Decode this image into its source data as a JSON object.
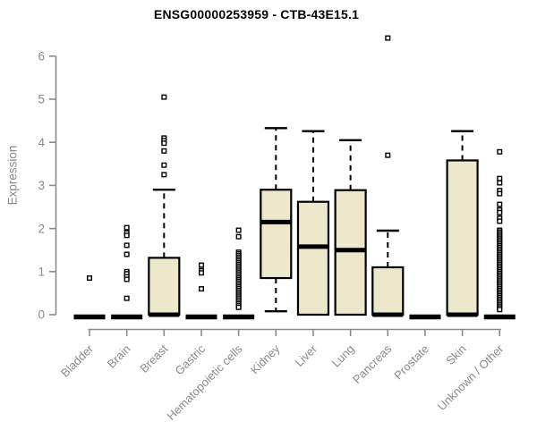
{
  "chart_data": {
    "type": "boxplot",
    "title": "ENSG00000253959 - CTB-43E15.1",
    "ylabel": "Expression",
    "xlabel": "",
    "ylim": [
      0,
      6.5
    ],
    "yticks": [
      0,
      1,
      2,
      3,
      4,
      5,
      6
    ],
    "grid": false,
    "legend": "none",
    "colors": {
      "box_fill": "#EDE7CC",
      "box_stroke": "#000000",
      "axis": "#8a8a8a",
      "tick_label": "#8a8a8a",
      "title": "#000000",
      "outlier_fill": "#ffffff"
    },
    "categories": [
      "Bladder",
      "Brain",
      "Breast",
      "Gastric",
      "Hematopoietic cells",
      "Kidney",
      "Liver",
      "Lung",
      "Pancreas",
      "Prostate",
      "Skin",
      "Unknown / Other"
    ],
    "series": [
      {
        "category": "Bladder",
        "whisker_low": 0,
        "q1": 0,
        "median": 0,
        "q3": 0,
        "whisker_high": 0,
        "outliers": [
          0.85
        ]
      },
      {
        "category": "Brain",
        "whisker_low": 0,
        "q1": 0,
        "median": 0,
        "q3": 0,
        "whisker_high": 0,
        "outliers": [
          2.02,
          1.9,
          1.84,
          1.61,
          1.4,
          1.0,
          0.95,
          0.88,
          0.82,
          0.38
        ]
      },
      {
        "category": "Breast",
        "whisker_low": 0,
        "q1": 0,
        "median": 0,
        "q3": 1.32,
        "whisker_high": 2.9,
        "outliers": [
          5.05,
          4.1,
          4.04,
          3.98,
          3.8,
          3.47,
          3.25
        ]
      },
      {
        "category": "Gastric",
        "whisker_low": 0,
        "q1": 0,
        "median": 0,
        "q3": 0,
        "whisker_high": 0,
        "outliers": [
          1.15,
          1.02,
          0.97,
          0.6
        ]
      },
      {
        "category": "Hematopoietic cells",
        "whisker_low": 0,
        "q1": 0,
        "median": 0,
        "q3": 0,
        "whisker_high": 0,
        "outliers": [
          1.96,
          1.81,
          1.45,
          1.41,
          1.37,
          1.33,
          1.29,
          1.25,
          1.21,
          1.17,
          1.13,
          1.09,
          1.05,
          1.01,
          0.97,
          0.93,
          0.89,
          0.85,
          0.81,
          0.77,
          0.73,
          0.69,
          0.65,
          0.61,
          0.57,
          0.53,
          0.49,
          0.45,
          0.41,
          0.37,
          0.33,
          0.29,
          0.25,
          0.21,
          0.17
        ]
      },
      {
        "category": "Kidney",
        "whisker_low": 0.08,
        "q1": 0.85,
        "median": 2.15,
        "q3": 2.9,
        "whisker_high": 4.33,
        "outliers": []
      },
      {
        "category": "Liver",
        "whisker_low": 0,
        "q1": 0,
        "median": 1.58,
        "q3": 2.62,
        "whisker_high": 4.26,
        "outliers": []
      },
      {
        "category": "Lung",
        "whisker_low": 0,
        "q1": 0,
        "median": 1.5,
        "q3": 2.89,
        "whisker_high": 4.05,
        "outliers": []
      },
      {
        "category": "Pancreas",
        "whisker_low": 0,
        "q1": 0,
        "median": 0,
        "q3": 1.1,
        "whisker_high": 1.95,
        "outliers": [
          3.7,
          6.42
        ]
      },
      {
        "category": "Prostate",
        "whisker_low": 0,
        "q1": 0,
        "median": 0,
        "q3": 0,
        "whisker_high": 0,
        "outliers": []
      },
      {
        "category": "Skin",
        "whisker_low": 0,
        "q1": 0,
        "median": 0,
        "q3": 3.58,
        "whisker_high": 4.26,
        "outliers": []
      },
      {
        "category": "Unknown / Other",
        "whisker_low": 0,
        "q1": 0,
        "median": 0,
        "q3": 0,
        "whisker_high": 0,
        "outliers": [
          3.78,
          3.16,
          3.06,
          2.88,
          2.81,
          2.56,
          2.43,
          2.37,
          2.24,
          2.17,
          1.96,
          1.92,
          1.88,
          1.84,
          1.8,
          1.76,
          1.72,
          1.68,
          1.64,
          1.6,
          1.56,
          1.52,
          1.48,
          1.44,
          1.4,
          1.36,
          1.32,
          1.28,
          1.24,
          1.2,
          1.16,
          1.12,
          1.08,
          1.04,
          1.0,
          0.96,
          0.92,
          0.88,
          0.84,
          0.8,
          0.76,
          0.72,
          0.68,
          0.64,
          0.6,
          0.56,
          0.52,
          0.48,
          0.44,
          0.4,
          0.36,
          0.32,
          0.28,
          0.24,
          0.2,
          0.16,
          0.12
        ]
      }
    ]
  }
}
